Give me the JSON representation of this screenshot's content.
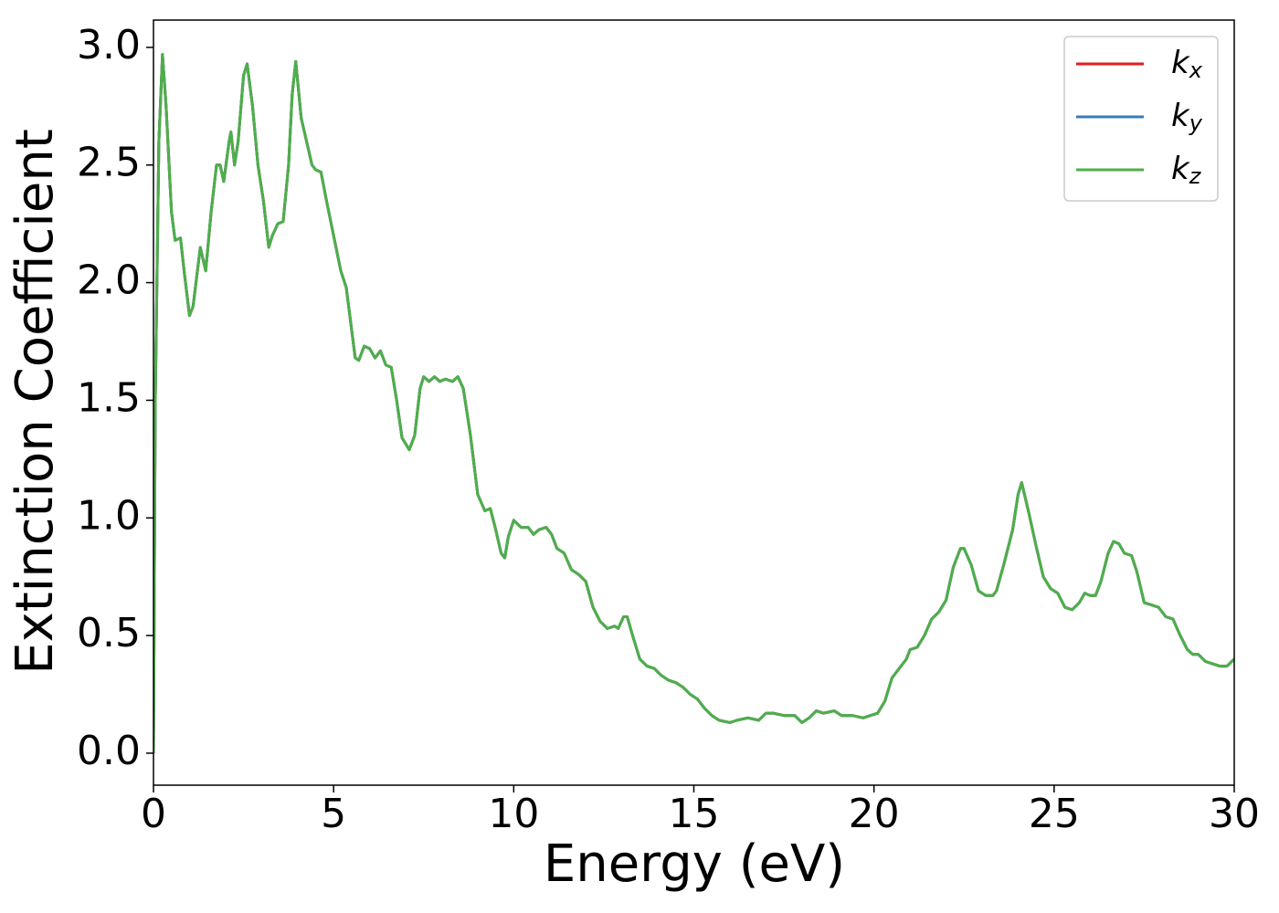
{
  "chart_data": {
    "type": "line",
    "xlabel": "Energy (eV)",
    "ylabel": "Extinction Coefficient",
    "xlim": [
      0,
      30
    ],
    "ylim": [
      -0.136,
      3.116
    ],
    "xticks": [
      0,
      5,
      10,
      15,
      20,
      25,
      30
    ],
    "yticks": [
      {
        "value": 0,
        "label": "0.0"
      },
      0.5,
      {
        "value": 1,
        "label": "1.0"
      },
      1.5,
      {
        "value": 2,
        "label": "2.0"
      },
      2.5,
      {
        "value": 3,
        "label": "3.0"
      }
    ],
    "grid": false,
    "legend": "upper right",
    "x": [
      0,
      0.05,
      0.15,
      0.25,
      0.35,
      0.5,
      0.6,
      0.75,
      0.85,
      1.0,
      1.1,
      1.3,
      1.45,
      1.6,
      1.75,
      1.85,
      1.95,
      2.1,
      2.15,
      2.25,
      2.35,
      2.5,
      2.6,
      2.75,
      2.9,
      3.05,
      3.2,
      3.3,
      3.45,
      3.6,
      3.75,
      3.85,
      3.95,
      4.1,
      4.25,
      4.4,
      4.5,
      4.65,
      4.8,
      5.0,
      5.2,
      5.35,
      5.5,
      5.6,
      5.7,
      5.85,
      6.0,
      6.15,
      6.3,
      6.45,
      6.6,
      6.75,
      6.9,
      7.1,
      7.25,
      7.4,
      7.5,
      7.65,
      7.8,
      7.95,
      8.1,
      8.3,
      8.45,
      8.6,
      8.8,
      9.0,
      9.2,
      9.35,
      9.5,
      9.65,
      9.75,
      9.85,
      10.0,
      10.2,
      10.4,
      10.55,
      10.7,
      10.9,
      11.05,
      11.2,
      11.4,
      11.6,
      11.8,
      12.0,
      12.2,
      12.4,
      12.6,
      12.8,
      12.9,
      13.05,
      13.15,
      13.3,
      13.5,
      13.7,
      13.9,
      14.1,
      14.3,
      14.5,
      14.7,
      14.9,
      15.1,
      15.3,
      15.5,
      15.7,
      16.0,
      16.2,
      16.5,
      16.8,
      17.0,
      17.2,
      17.5,
      17.8,
      18.0,
      18.2,
      18.4,
      18.6,
      18.9,
      19.1,
      19.4,
      19.7,
      19.9,
      20.1,
      20.3,
      20.5,
      20.7,
      20.9,
      21.0,
      21.2,
      21.4,
      21.6,
      21.8,
      22.0,
      22.2,
      22.4,
      22.5,
      22.7,
      22.9,
      23.1,
      23.3,
      23.4,
      23.6,
      23.85,
      24.0,
      24.1,
      24.3,
      24.5,
      24.7,
      24.9,
      25.1,
      25.3,
      25.5,
      25.7,
      25.85,
      26.0,
      26.15,
      26.3,
      26.5,
      26.65,
      26.8,
      26.95,
      27.15,
      27.3,
      27.5,
      27.7,
      27.9,
      28.1,
      28.3,
      28.5,
      28.7,
      28.85,
      29.0,
      29.2,
      29.4,
      29.6,
      29.8,
      30.0
    ],
    "series": [
      {
        "name": "kx",
        "color": "#e41a1c",
        "values": [
          0,
          1.5,
          2.6,
          2.97,
          2.75,
          2.3,
          2.18,
          2.19,
          2.05,
          1.86,
          1.9,
          2.15,
          2.05,
          2.3,
          2.5,
          2.5,
          2.43,
          2.6,
          2.64,
          2.5,
          2.6,
          2.88,
          2.93,
          2.75,
          2.5,
          2.35,
          2.15,
          2.2,
          2.25,
          2.26,
          2.5,
          2.8,
          2.94,
          2.7,
          2.6,
          2.5,
          2.48,
          2.47,
          2.35,
          2.2,
          2.05,
          1.98,
          1.8,
          1.68,
          1.67,
          1.73,
          1.72,
          1.68,
          1.71,
          1.65,
          1.64,
          1.5,
          1.34,
          1.29,
          1.35,
          1.55,
          1.6,
          1.58,
          1.6,
          1.58,
          1.59,
          1.58,
          1.6,
          1.55,
          1.35,
          1.1,
          1.03,
          1.04,
          0.95,
          0.85,
          0.83,
          0.92,
          0.99,
          0.96,
          0.96,
          0.93,
          0.95,
          0.96,
          0.93,
          0.87,
          0.85,
          0.78,
          0.76,
          0.73,
          0.62,
          0.56,
          0.53,
          0.54,
          0.53,
          0.58,
          0.58,
          0.5,
          0.4,
          0.37,
          0.36,
          0.33,
          0.31,
          0.3,
          0.28,
          0.25,
          0.23,
          0.19,
          0.16,
          0.14,
          0.13,
          0.14,
          0.15,
          0.14,
          0.17,
          0.17,
          0.16,
          0.16,
          0.13,
          0.15,
          0.18,
          0.17,
          0.18,
          0.16,
          0.16,
          0.15,
          0.16,
          0.17,
          0.22,
          0.32,
          0.36,
          0.4,
          0.44,
          0.45,
          0.5,
          0.57,
          0.6,
          0.65,
          0.79,
          0.87,
          0.87,
          0.8,
          0.69,
          0.67,
          0.67,
          0.69,
          0.8,
          0.95,
          1.1,
          1.15,
          1.02,
          0.88,
          0.75,
          0.7,
          0.68,
          0.62,
          0.61,
          0.64,
          0.68,
          0.67,
          0.67,
          0.73,
          0.85,
          0.9,
          0.89,
          0.85,
          0.84,
          0.77,
          0.64,
          0.63,
          0.62,
          0.58,
          0.57,
          0.5,
          0.44,
          0.42,
          0.42,
          0.39,
          0.38,
          0.37,
          0.37,
          0.4
        ]
      },
      {
        "name": "ky",
        "color": "#377eb8",
        "values": [
          0,
          1.5,
          2.6,
          2.97,
          2.75,
          2.3,
          2.18,
          2.19,
          2.05,
          1.86,
          1.9,
          2.15,
          2.05,
          2.3,
          2.5,
          2.5,
          2.43,
          2.6,
          2.64,
          2.5,
          2.6,
          2.88,
          2.93,
          2.75,
          2.5,
          2.35,
          2.15,
          2.2,
          2.25,
          2.26,
          2.5,
          2.8,
          2.94,
          2.7,
          2.6,
          2.5,
          2.48,
          2.47,
          2.35,
          2.2,
          2.05,
          1.98,
          1.8,
          1.68,
          1.67,
          1.73,
          1.72,
          1.68,
          1.71,
          1.65,
          1.64,
          1.5,
          1.34,
          1.29,
          1.35,
          1.55,
          1.6,
          1.58,
          1.6,
          1.58,
          1.59,
          1.58,
          1.6,
          1.55,
          1.35,
          1.1,
          1.03,
          1.04,
          0.95,
          0.85,
          0.83,
          0.92,
          0.99,
          0.96,
          0.96,
          0.93,
          0.95,
          0.96,
          0.93,
          0.87,
          0.85,
          0.78,
          0.76,
          0.73,
          0.62,
          0.56,
          0.53,
          0.54,
          0.53,
          0.58,
          0.58,
          0.5,
          0.4,
          0.37,
          0.36,
          0.33,
          0.31,
          0.3,
          0.28,
          0.25,
          0.23,
          0.19,
          0.16,
          0.14,
          0.13,
          0.14,
          0.15,
          0.14,
          0.17,
          0.17,
          0.16,
          0.16,
          0.13,
          0.15,
          0.18,
          0.17,
          0.18,
          0.16,
          0.16,
          0.15,
          0.16,
          0.17,
          0.22,
          0.32,
          0.36,
          0.4,
          0.44,
          0.45,
          0.5,
          0.57,
          0.6,
          0.65,
          0.79,
          0.87,
          0.87,
          0.8,
          0.69,
          0.67,
          0.67,
          0.69,
          0.8,
          0.95,
          1.1,
          1.15,
          1.02,
          0.88,
          0.75,
          0.7,
          0.68,
          0.62,
          0.61,
          0.64,
          0.68,
          0.67,
          0.67,
          0.73,
          0.85,
          0.9,
          0.89,
          0.85,
          0.84,
          0.77,
          0.64,
          0.63,
          0.62,
          0.58,
          0.57,
          0.5,
          0.44,
          0.42,
          0.42,
          0.39,
          0.38,
          0.37,
          0.37,
          0.4
        ]
      },
      {
        "name": "kz",
        "color": "#4daf4a",
        "values": [
          0,
          1.5,
          2.6,
          2.97,
          2.75,
          2.3,
          2.18,
          2.19,
          2.05,
          1.86,
          1.9,
          2.15,
          2.05,
          2.3,
          2.5,
          2.5,
          2.43,
          2.6,
          2.64,
          2.5,
          2.6,
          2.88,
          2.93,
          2.75,
          2.5,
          2.35,
          2.15,
          2.2,
          2.25,
          2.26,
          2.5,
          2.8,
          2.94,
          2.7,
          2.6,
          2.5,
          2.48,
          2.47,
          2.35,
          2.2,
          2.05,
          1.98,
          1.8,
          1.68,
          1.67,
          1.73,
          1.72,
          1.68,
          1.71,
          1.65,
          1.64,
          1.5,
          1.34,
          1.29,
          1.35,
          1.55,
          1.6,
          1.58,
          1.6,
          1.58,
          1.59,
          1.58,
          1.6,
          1.55,
          1.35,
          1.1,
          1.03,
          1.04,
          0.95,
          0.85,
          0.83,
          0.92,
          0.99,
          0.96,
          0.96,
          0.93,
          0.95,
          0.96,
          0.93,
          0.87,
          0.85,
          0.78,
          0.76,
          0.73,
          0.62,
          0.56,
          0.53,
          0.54,
          0.53,
          0.58,
          0.58,
          0.5,
          0.4,
          0.37,
          0.36,
          0.33,
          0.31,
          0.3,
          0.28,
          0.25,
          0.23,
          0.19,
          0.16,
          0.14,
          0.13,
          0.14,
          0.15,
          0.14,
          0.17,
          0.17,
          0.16,
          0.16,
          0.13,
          0.15,
          0.18,
          0.17,
          0.18,
          0.16,
          0.16,
          0.15,
          0.16,
          0.17,
          0.22,
          0.32,
          0.36,
          0.4,
          0.44,
          0.45,
          0.5,
          0.57,
          0.6,
          0.65,
          0.79,
          0.87,
          0.87,
          0.8,
          0.69,
          0.67,
          0.67,
          0.69,
          0.8,
          0.95,
          1.1,
          1.15,
          1.02,
          0.88,
          0.75,
          0.7,
          0.68,
          0.62,
          0.61,
          0.64,
          0.68,
          0.67,
          0.67,
          0.73,
          0.85,
          0.9,
          0.89,
          0.85,
          0.84,
          0.77,
          0.64,
          0.63,
          0.62,
          0.58,
          0.57,
          0.5,
          0.44,
          0.42,
          0.42,
          0.39,
          0.38,
          0.37,
          0.37,
          0.4
        ]
      }
    ]
  }
}
